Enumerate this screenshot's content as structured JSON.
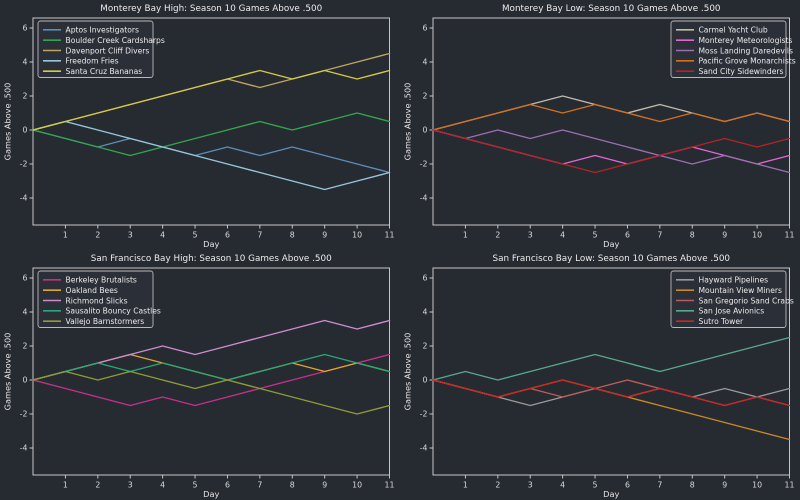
{
  "figure": {
    "background": "#262a31",
    "spine_color": "#c6c6c6",
    "text_color": "#ececec",
    "x_ticks": [
      1,
      2,
      3,
      4,
      5,
      6,
      7,
      8,
      9,
      10,
      11
    ],
    "y_ticks": [
      6,
      4,
      2,
      0,
      -2,
      -4
    ],
    "xlabel": "Day",
    "ylabel": "Games Above .500"
  },
  "chart_data": [
    {
      "type": "line",
      "title": "Monterey Bay High: Season 10 Games Above .500",
      "xlabel": "Day",
      "ylabel": "Games Above .500",
      "x": [
        0,
        1,
        2,
        3,
        4,
        5,
        6,
        7,
        8,
        9,
        10,
        11
      ],
      "xlim": [
        0,
        11
      ],
      "ylim": [
        -5.6,
        6.6
      ],
      "grid": false,
      "legend_position": "upper-left",
      "series": [
        {
          "name": "Aptos Investigators",
          "color": "#5b8db8",
          "values": [
            0,
            -0.5,
            -1,
            -0.5,
            -1,
            -1.5,
            -1,
            -1.5,
            -1,
            -1.5,
            -2,
            -2.5
          ]
        },
        {
          "name": "Boulder Creek Cardsharps",
          "color": "#33a64c",
          "values": [
            0,
            -0.5,
            -1,
            -1.5,
            -1,
            -0.5,
            0,
            0.5,
            0,
            0.5,
            1,
            0.5
          ]
        },
        {
          "name": "Davenport Cliff Divers",
          "color": "#bfa55f",
          "values": [
            0,
            0.5,
            1,
            1.5,
            2,
            2.5,
            3,
            2.5,
            3,
            3.5,
            4,
            4.5
          ]
        },
        {
          "name": "Freedom Fries",
          "color": "#96c6d9",
          "values": [
            0,
            0.5,
            0,
            -0.5,
            -1,
            -1.5,
            -2,
            -2.5,
            -3,
            -3.5,
            -3,
            -2.5
          ]
        },
        {
          "name": "Santa Cruz Bananas",
          "color": "#d3ca45",
          "values": [
            0,
            0.5,
            1,
            1.5,
            2,
            2.5,
            3,
            3.5,
            3,
            3.5,
            3,
            3.5
          ]
        }
      ]
    },
    {
      "type": "line",
      "title": "Monterey Bay Low: Season 10 Games Above .500",
      "xlabel": "Day",
      "ylabel": "Games Above .500",
      "x": [
        0,
        1,
        2,
        3,
        4,
        5,
        6,
        7,
        8,
        9,
        10,
        11
      ],
      "xlim": [
        0,
        11
      ],
      "ylim": [
        -5.6,
        6.6
      ],
      "grid": false,
      "legend_position": "upper-right",
      "series": [
        {
          "name": "Carmel Yacht Club",
          "color": "#c3bba9",
          "values": [
            0,
            0.5,
            1,
            1.5,
            2,
            1.5,
            1,
            1.5,
            1,
            0.5,
            1,
            0.5
          ]
        },
        {
          "name": "Monterey Meteorologists",
          "color": "#e466cf",
          "values": [
            0,
            -0.5,
            -1,
            -1.5,
            -2,
            -1.5,
            -2,
            -1.5,
            -1,
            -1.5,
            -2,
            -1.5
          ]
        },
        {
          "name": "Moss Landing Daredevils",
          "color": "#9a6fb0",
          "values": [
            0,
            -0.5,
            0,
            -0.5,
            0,
            -0.5,
            -1,
            -1.5,
            -2,
            -1.5,
            -2,
            -2.5
          ]
        },
        {
          "name": "Pacific Grove Monarchists",
          "color": "#d2701e",
          "values": [
            0,
            0.5,
            1,
            1.5,
            1,
            1.5,
            1,
            0.5,
            1,
            0.5,
            1,
            0.5
          ]
        },
        {
          "name": "Sand City Sidewinders",
          "color": "#b42424",
          "values": [
            0,
            -0.5,
            -1,
            -1.5,
            -2,
            -2.5,
            -2,
            -1.5,
            -1,
            -0.5,
            -1,
            -0.5
          ]
        }
      ]
    },
    {
      "type": "line",
      "title": "San Francisco Bay High: Season 10 Games Above .500",
      "xlabel": "Day",
      "ylabel": "Games Above .500",
      "x": [
        0,
        1,
        2,
        3,
        4,
        5,
        6,
        7,
        8,
        9,
        10,
        11
      ],
      "xlim": [
        0,
        11
      ],
      "ylim": [
        -5.6,
        6.6
      ],
      "grid": false,
      "legend_position": "upper-left",
      "series": [
        {
          "name": "Berkeley Brutalists",
          "color": "#c43189",
          "values": [
            0,
            -0.5,
            -1,
            -1.5,
            -1,
            -1.5,
            -1,
            -0.5,
            0,
            0.5,
            1,
            1.5
          ]
        },
        {
          "name": "Oakland Bees",
          "color": "#dda728",
          "values": [
            0,
            0.5,
            1,
            1.5,
            1,
            0.5,
            0,
            0.5,
            1,
            0.5,
            1,
            0.5
          ]
        },
        {
          "name": "Richmond Slicks",
          "color": "#cf8bcf",
          "values": [
            0,
            0.5,
            1,
            1.5,
            2,
            1.5,
            2,
            2.5,
            3,
            3.5,
            3,
            3.5
          ]
        },
        {
          "name": "Sausalito Bouncy Castles",
          "color": "#28a878",
          "values": [
            0,
            0.5,
            1,
            0.5,
            1,
            0.5,
            0,
            0.5,
            1,
            1.5,
            1,
            0.5
          ]
        },
        {
          "name": "Vallejo Barnstormers",
          "color": "#8f9b35",
          "values": [
            0,
            0.5,
            0,
            0.5,
            0,
            -0.5,
            0,
            -0.5,
            -1,
            -1.5,
            -2,
            -1.5
          ]
        }
      ]
    },
    {
      "type": "line",
      "title": "San Francisco Bay Low: Season 10 Games Above .500",
      "xlabel": "Day",
      "ylabel": "Games Above .500",
      "x": [
        0,
        1,
        2,
        3,
        4,
        5,
        6,
        7,
        8,
        9,
        10,
        11
      ],
      "xlim": [
        0,
        11
      ],
      "ylim": [
        -5.6,
        6.6
      ],
      "grid": false,
      "legend_position": "upper-right",
      "series": [
        {
          "name": "Hayward Pipelines",
          "color": "#999999",
          "values": [
            0,
            -0.5,
            -1,
            -1.5,
            -1,
            -0.5,
            -1,
            -0.5,
            -1,
            -0.5,
            -1,
            -0.5
          ]
        },
        {
          "name": "Mountain View Miners",
          "color": "#cc8822",
          "values": [
            0,
            -0.5,
            -1,
            -0.5,
            0,
            -0.5,
            -1,
            -1.5,
            -2,
            -2.5,
            -3,
            -3.5
          ]
        },
        {
          "name": "San Gregorio Sand Crabs",
          "color": "#bb5b5b",
          "values": [
            0,
            -0.5,
            -1,
            -0.5,
            -1,
            -0.5,
            0,
            -0.5,
            -1,
            -1.5,
            -1,
            -1.5
          ]
        },
        {
          "name": "San Jose Avionics",
          "color": "#58a88c",
          "values": [
            0,
            0.5,
            0,
            0.5,
            1,
            1.5,
            1,
            0.5,
            1,
            1.5,
            2,
            2.5
          ]
        },
        {
          "name": "Sutro Tower",
          "color": "#cc2525",
          "values": [
            0,
            -0.5,
            -1,
            -0.5,
            0,
            -0.5,
            -1,
            -0.5,
            -1,
            -1.5,
            -1,
            -1.5
          ]
        }
      ]
    }
  ]
}
